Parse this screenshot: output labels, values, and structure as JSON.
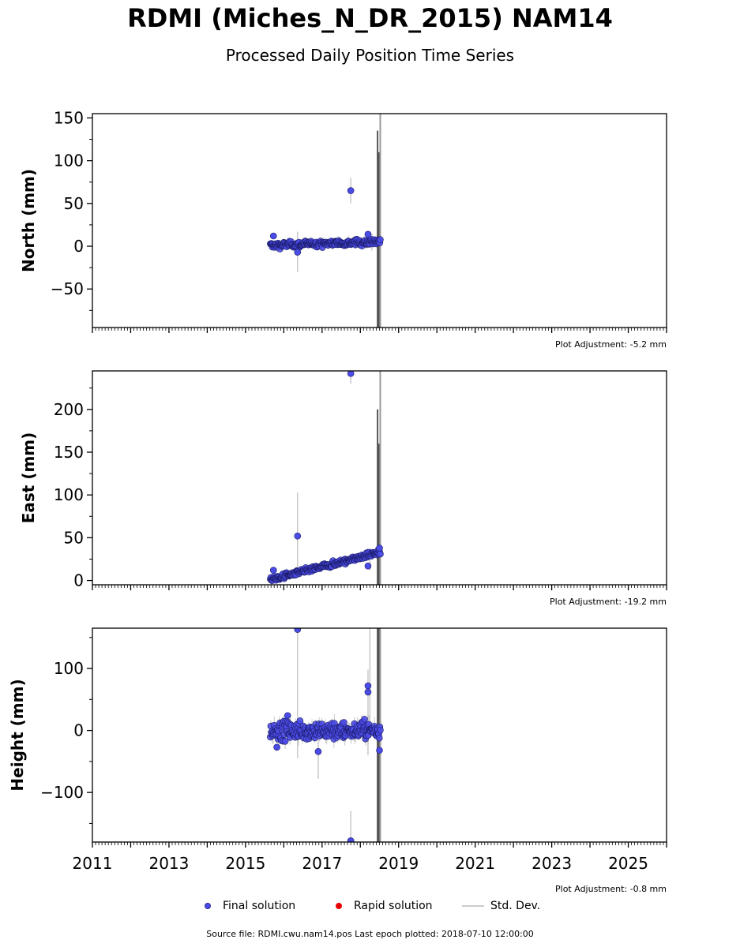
{
  "title": "RDMI (Miches_N_DR_2015) NAM14",
  "subtitle": "Processed Daily Position Time Series",
  "legend": {
    "final": "Final solution",
    "rapid": "Rapid solution",
    "stddev": "Std. Dev."
  },
  "source": "Source file: RDMI.cwu.nam14.pos  Last epoch plotted: 2018-07-10 12:00:00",
  "colors": {
    "final": "#4b4be6",
    "final_edge": "#1a1a66",
    "rapid": "#e60000",
    "stddev": "#c8c8c8",
    "spike": "#555555"
  },
  "chart_data": [
    {
      "type": "scatter",
      "ylabel": "North (mm)",
      "adjustment": "Plot Adjustment: -5.2 mm",
      "xlim": [
        2011.0,
        2026.0
      ],
      "ylim": [
        -95,
        155
      ],
      "yticks": [
        -50,
        0,
        50,
        100,
        150
      ],
      "ytick_labels": [
        "−50",
        "0",
        "50",
        "100",
        "150"
      ],
      "start": 2015.65,
      "end": 2018.52,
      "trend": [
        1.0,
        5.5
      ],
      "noise": 2.5,
      "sd_noise": 3.0,
      "outliers": [
        [
          2015.73,
          12
        ],
        [
          2016.36,
          -7
        ],
        [
          2017.75,
          65
        ],
        [
          2018.2,
          14
        ]
      ],
      "sd_spikes": [
        [
          2016.36,
          -30,
          17
        ],
        [
          2017.75,
          50,
          80
        ],
        [
          2018.3,
          -5,
          15
        ]
      ],
      "vertical_spikes": [
        [
          2018.45,
          135
        ],
        [
          2018.48,
          110
        ],
        [
          2018.52,
          155
        ]
      ]
    },
    {
      "type": "scatter",
      "ylabel": "East (mm)",
      "adjustment": "Plot Adjustment: -19.2 mm",
      "xlim": [
        2011.0,
        2026.0
      ],
      "ylim": [
        -5,
        245
      ],
      "yticks": [
        0,
        50,
        100,
        150,
        200
      ],
      "ytick_labels": [
        "0",
        "50",
        "100",
        "150",
        "200"
      ],
      "start": 2015.65,
      "end": 2018.52,
      "trend": [
        1.0,
        33.0
      ],
      "noise": 2.2,
      "sd_noise": 3.0,
      "outliers": [
        [
          2015.73,
          12
        ],
        [
          2016.36,
          52
        ],
        [
          2017.75,
          242
        ],
        [
          2018.2,
          17
        ],
        [
          2018.5,
          38
        ]
      ],
      "sd_spikes": [
        [
          2016.36,
          5,
          103
        ],
        [
          2017.75,
          230,
          245
        ],
        [
          2018.25,
          12,
          25
        ]
      ],
      "vertical_spikes": [
        [
          2018.45,
          200
        ],
        [
          2018.48,
          160
        ],
        [
          2018.52,
          245
        ]
      ]
    },
    {
      "type": "scatter",
      "ylabel": "Height (mm)",
      "adjustment": "Plot Adjustment: -0.8 mm",
      "xlim": [
        2011.0,
        2026.0
      ],
      "ylim": [
        -180,
        165
      ],
      "yticks": [
        -100,
        0,
        100
      ],
      "ytick_labels": [
        "−100",
        "0",
        "100"
      ],
      "start": 2015.65,
      "end": 2018.52,
      "trend": [
        0.0,
        0.0
      ],
      "noise": 10,
      "sd_noise": 12,
      "outliers": [
        [
          2015.82,
          -27
        ],
        [
          2016.1,
          24
        ],
        [
          2016.36,
          163
        ],
        [
          2016.9,
          -34
        ],
        [
          2017.75,
          -178
        ],
        [
          2018.2,
          72
        ],
        [
          2018.2,
          62
        ],
        [
          2018.5,
          -32
        ]
      ],
      "sd_spikes": [
        [
          2016.36,
          -45,
          163
        ],
        [
          2016.9,
          -78,
          10
        ],
        [
          2017.75,
          -180,
          -130
        ],
        [
          2018.2,
          -40,
          98
        ],
        [
          2018.25,
          -10,
          165
        ]
      ],
      "vertical_spikes": [
        [
          2018.45,
          165
        ],
        [
          2018.48,
          165
        ],
        [
          2018.52,
          165
        ]
      ]
    }
  ],
  "xticks": [
    2011,
    2013,
    2015,
    2017,
    2019,
    2021,
    2023,
    2025
  ],
  "xtick_labels": [
    "2011",
    "2013",
    "2015",
    "2017",
    "2019",
    "2021",
    "2023",
    "2025"
  ]
}
